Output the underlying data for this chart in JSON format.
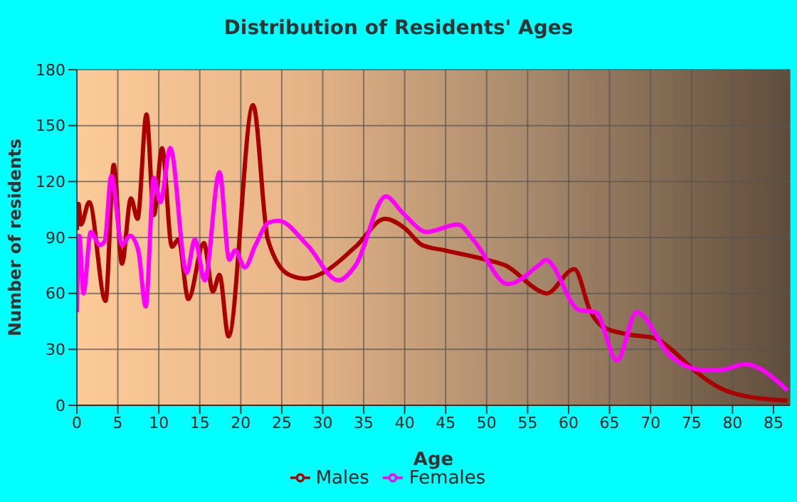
{
  "chart_data": {
    "type": "line",
    "title": "Distribution of Residents' Ages",
    "xlabel": "Age",
    "ylabel": "Number of residents",
    "xlim": [
      0,
      87
    ],
    "xticks": [
      0,
      5,
      10,
      15,
      20,
      25,
      30,
      35,
      40,
      45,
      50,
      55,
      60,
      65,
      70,
      75,
      80,
      85
    ],
    "ylim": [
      0,
      180
    ],
    "yticks": [
      0,
      30,
      60,
      90,
      120,
      150,
      180
    ],
    "grid": true,
    "legend": "bottom",
    "marker": "none",
    "line_style": "solid",
    "series": [
      {
        "name": "Males",
        "color": "#aa0000",
        "x": [
          0,
          0.2,
          0.5,
          1.5,
          3.5,
          4.5,
          5.5,
          6.6,
          7.4,
          8.5,
          9.4,
          10.4,
          11.6,
          12.4,
          13.6,
          15.5,
          16.6,
          17.4,
          18.5,
          21.5,
          23.3,
          25.9,
          27.9,
          30,
          34,
          37.6,
          40,
          42.1,
          45,
          50,
          52.3,
          56.6,
          57.3,
          60.7,
          62.7,
          64.2,
          67.3,
          70.5,
          72.8,
          75,
          78.6,
          81.5,
          86.7
        ],
        "values": [
          94,
          108,
          97,
          109,
          56,
          129,
          76,
          111,
          100,
          156,
          102,
          138,
          85,
          89,
          57,
          87,
          61,
          70,
          37,
          161,
          89,
          70,
          68,
          71,
          85,
          100,
          95,
          86,
          83,
          78,
          75,
          61,
          60,
          73,
          50,
          42,
          38,
          36,
          29,
          20,
          9,
          5,
          2.5
        ]
      },
      {
        "name": "Females",
        "color": "#ff00ff",
        "x": [
          0,
          0.3,
          0.8,
          1.7,
          2.8,
          3.4,
          4.2,
          5.5,
          6.5,
          7.5,
          8.4,
          9.4,
          10.2,
          11.4,
          13.4,
          14.4,
          15.6,
          17.4,
          18.6,
          19.3,
          20.5,
          21.8,
          23.4,
          24.6,
          28.1,
          31.9,
          34,
          37.7,
          39.8,
          42.7,
          46.5,
          48.5,
          52.6,
          56.6,
          57.2,
          61.3,
          63.3,
          65.9,
          68.3,
          72.3,
          76.3,
          78.6,
          81.5,
          86.7
        ],
        "values": [
          50,
          91,
          60,
          93,
          86,
          88,
          123,
          86,
          91,
          83,
          53,
          122,
          109,
          138,
          71,
          89,
          67,
          125,
          78,
          83,
          74,
          86,
          98,
          99,
          86,
          67,
          75,
          112,
          103,
          93,
          97,
          88,
          65,
          76,
          78,
          51,
          50,
          24,
          50,
          27,
          19,
          19,
          22,
          8
        ]
      }
    ]
  }
}
